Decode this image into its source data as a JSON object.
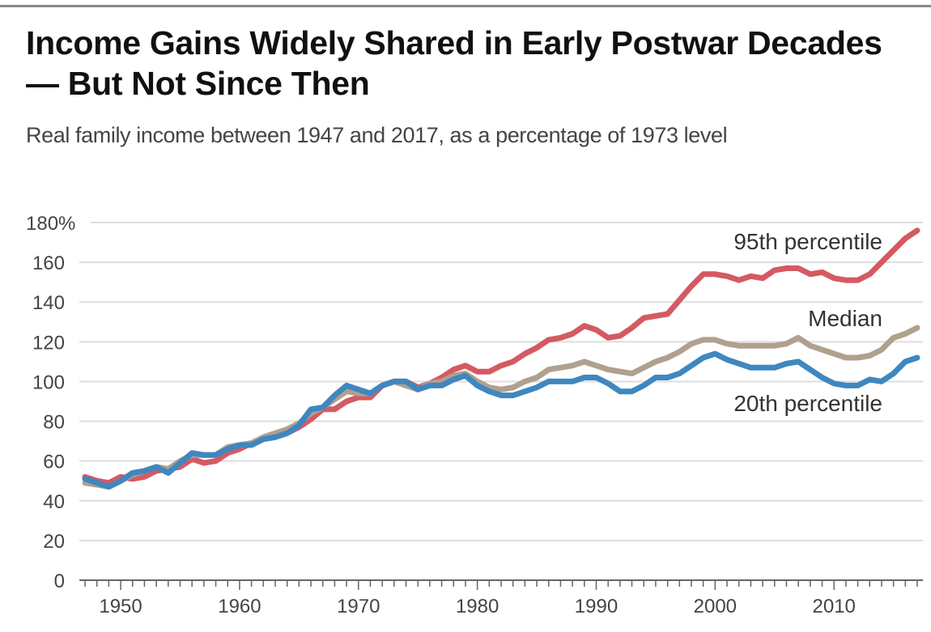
{
  "chart_data": {
    "type": "line",
    "title": "Income Gains Widely Shared in Early Postwar Decades — But Not Since Then",
    "subtitle": "Real family income between 1947 and 2017, as a percentage of 1973 level",
    "xlabel": "",
    "ylabel": "",
    "xlim": [
      1947,
      2017
    ],
    "ylim": [
      0,
      180
    ],
    "x_ticks": [
      "1950",
      "1960",
      "1970",
      "1980",
      "1990",
      "2000",
      "2010"
    ],
    "y_ticks": [
      "0",
      "20",
      "40",
      "60",
      "80",
      "100",
      "120",
      "140",
      "160",
      "180%"
    ],
    "grid": true,
    "x_start": 1947,
    "series": [
      {
        "name": "95th percentile",
        "color": "#d45a62",
        "values": [
          52,
          50,
          49,
          52,
          51,
          52,
          55,
          56,
          57,
          61,
          59,
          60,
          64,
          66,
          69,
          71,
          72,
          74,
          77,
          81,
          86,
          86,
          90,
          92,
          92,
          98,
          100,
          100,
          97,
          99,
          102,
          106,
          108,
          105,
          105,
          108,
          110,
          114,
          117,
          121,
          122,
          124,
          128,
          126,
          122,
          123,
          127,
          132,
          133,
          134,
          141,
          148,
          154,
          154,
          153,
          151,
          153,
          152,
          156,
          157,
          157,
          154,
          155,
          152,
          151,
          151,
          154,
          160,
          166,
          172,
          176
        ]
      },
      {
        "name": "Median",
        "color": "#b0a08e",
        "values": [
          49,
          48,
          47,
          50,
          53,
          55,
          57,
          56,
          60,
          63,
          63,
          63,
          67,
          68,
          69,
          72,
          74,
          76,
          79,
          84,
          87,
          91,
          95,
          94,
          94,
          98,
          100,
          98,
          96,
          99,
          100,
          103,
          104,
          100,
          97,
          96,
          97,
          100,
          102,
          106,
          107,
          108,
          110,
          108,
          106,
          105,
          104,
          107,
          110,
          112,
          115,
          119,
          121,
          121,
          119,
          118,
          118,
          118,
          118,
          119,
          122,
          118,
          116,
          114,
          112,
          112,
          113,
          116,
          122,
          124,
          127
        ]
      },
      {
        "name": "20th percentile",
        "color": "#3f87bf",
        "values": [
          51,
          49,
          47,
          50,
          54,
          55,
          57,
          54,
          59,
          64,
          63,
          63,
          66,
          68,
          68,
          71,
          72,
          74,
          78,
          86,
          87,
          93,
          98,
          96,
          94,
          98,
          100,
          100,
          96,
          98,
          98,
          101,
          103,
          98,
          95,
          93,
          93,
          95,
          97,
          100,
          100,
          100,
          102,
          102,
          99,
          95,
          95,
          98,
          102,
          102,
          104,
          108,
          112,
          114,
          111,
          109,
          107,
          107,
          107,
          109,
          110,
          106,
          102,
          99,
          98,
          98,
          101,
          100,
          104,
          110,
          112
        ]
      }
    ]
  }
}
